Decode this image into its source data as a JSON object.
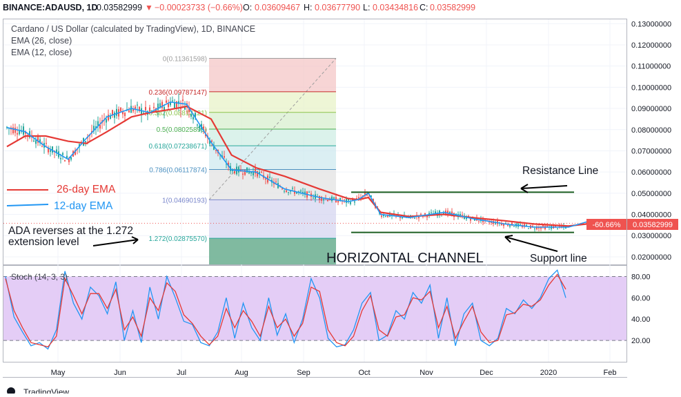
{
  "header": {
    "symbol": "BINANCE:ADAUSD, 1D",
    "last": "0.03582999",
    "change": "−0.00023733 (−0.66%)",
    "o_label": "O:",
    "o": "0.03609467",
    "h_label": "H:",
    "h": "0.03677790",
    "l_label": "L:",
    "l": "0.03434816",
    "c_label": "C:",
    "c": "0.03582999"
  },
  "legend": {
    "title": "Cardano / US Dollar (calculated by TradingView), 1D, BINANCE",
    "ema26": "EMA (26, close)",
    "ema12": "EMA (12, close)"
  },
  "annotations": {
    "ema26_label": "26-day EMA",
    "ema12_label": "12-day EMA",
    "reversal_line1": "ADA reverses at the 1.272",
    "reversal_line2": "extension level",
    "resistance": "Resistance Line",
    "support": "Support line",
    "channel": "HORIZONTAL CHANNEL"
  },
  "price_tag": {
    "pct": "-60.66%",
    "price": "0.03582999"
  },
  "stoch_label": "Stoch (14, 3, 3)",
  "footer": {
    "brand": "TradingView"
  },
  "colors": {
    "up": "#26a69a",
    "down": "#ef5350",
    "ema26": "#e53935",
    "ema12": "#2196f3",
    "stoch_bg": "#e1c8f5",
    "channel": "#1b5e20"
  },
  "chart_data": [
    {
      "type": "candlestick",
      "title": "Cardano / US Dollar (calculated by TradingView), 1D, BINANCE",
      "x_ticks": [
        "May",
        "Jun",
        "Jul",
        "Aug",
        "Sep",
        "Oct",
        "Nov",
        "Dec",
        "2020",
        "Feb"
      ],
      "y_ticks": [
        "0.13000000",
        "0.12000000",
        "0.11000000",
        "0.10000000",
        "0.09000000",
        "0.08000000",
        "0.07000000",
        "0.06000000",
        "0.05000000",
        "0.04000000",
        "0.03000000",
        "0.02000000"
      ],
      "ylim": [
        0.0164,
        0.1322
      ],
      "series": [
        {
          "name": "EMA (26, close)",
          "color": "#e53935",
          "x": [
            "2019-04-01",
            "2019-04-10",
            "2019-04-20",
            "2019-05-01",
            "2019-05-10",
            "2019-05-20",
            "2019-06-01",
            "2019-06-10",
            "2019-06-20",
            "2019-06-28",
            "2019-07-10",
            "2019-07-20",
            "2019-08-01",
            "2019-08-15",
            "2019-09-01",
            "2019-09-15",
            "2019-09-20",
            "2019-09-25",
            "2019-10-01",
            "2019-10-15",
            "2019-11-01",
            "2019-11-15",
            "2019-12-01",
            "2019-12-15",
            "2020-01-01",
            "2020-01-10"
          ],
          "values": [
            0.072,
            0.077,
            0.077,
            0.0745,
            0.0735,
            0.079,
            0.086,
            0.088,
            0.0895,
            0.091,
            0.085,
            0.068,
            0.062,
            0.058,
            0.052,
            0.0475,
            0.047,
            0.048,
            0.041,
            0.039,
            0.04,
            0.0385,
            0.037,
            0.0355,
            0.0345,
            0.0355
          ]
        },
        {
          "name": "EMA (12, close)",
          "color": "#2196f3",
          "x": [
            "2019-04-01",
            "2019-04-10",
            "2019-04-20",
            "2019-05-01",
            "2019-05-10",
            "2019-05-20",
            "2019-06-01",
            "2019-06-10",
            "2019-06-20",
            "2019-06-28",
            "2019-07-10",
            "2019-07-20",
            "2019-08-01",
            "2019-08-15",
            "2019-09-01",
            "2019-09-15",
            "2019-09-20",
            "2019-09-25",
            "2019-10-01",
            "2019-10-15",
            "2019-11-01",
            "2019-11-15",
            "2019-12-01",
            "2019-12-15",
            "2020-01-01",
            "2020-01-10"
          ],
          "values": [
            0.081,
            0.079,
            0.072,
            0.066,
            0.076,
            0.086,
            0.09,
            0.088,
            0.093,
            0.092,
            0.074,
            0.061,
            0.06,
            0.052,
            0.048,
            0.046,
            0.047,
            0.05,
            0.04,
            0.0385,
            0.041,
            0.038,
            0.0355,
            0.034,
            0.034,
            0.0365
          ]
        }
      ],
      "fibonacci": [
        {
          "level": "0",
          "price": 0.11361598,
          "label": "0(0.11361598)"
        },
        {
          "level": "0.236",
          "price": 0.09787147,
          "label": "0.236(0.09787147)"
        },
        {
          "level": "0.382",
          "price": 0.08813121,
          "label": "0.382(0.08813121)"
        },
        {
          "level": "0.5",
          "price": 0.08025896,
          "label": "0.5(0.08025896)"
        },
        {
          "level": "0.618",
          "price": 0.07238671,
          "label": "0.618(0.07238671)"
        },
        {
          "level": "0.786",
          "price": 0.06117874,
          "label": "0.786(0.06117874)"
        },
        {
          "level": "1",
          "price": 0.04690193,
          "label": "1(0.04690193)"
        },
        {
          "level": "1.272",
          "price": 0.0287557,
          "label": "1.272(0.02875570)"
        }
      ],
      "channel": {
        "resistance": 0.0505,
        "support": 0.0315
      },
      "last_price": 0.03582999
    },
    {
      "type": "line",
      "title": "Stoch (14, 3, 3)",
      "y_ticks": [
        "80.00",
        "60.00",
        "40.00",
        "20.00"
      ],
      "ylim": [
        0,
        90
      ],
      "bands": [
        80,
        20
      ],
      "series": [
        {
          "name": "%K",
          "color": "#2196f3",
          "values": [
            80,
            42,
            28,
            15,
            18,
            12,
            30,
            85,
            55,
            40,
            70,
            62,
            45,
            75,
            20,
            48,
            18,
            70,
            40,
            80,
            60,
            38,
            35,
            18,
            15,
            28,
            60,
            22,
            55,
            32,
            20,
            60,
            25,
            45,
            18,
            40,
            78,
            60,
            22,
            14,
            16,
            30,
            55,
            65,
            20,
            25,
            48,
            40,
            65,
            55,
            72,
            22,
            60,
            15,
            45,
            55,
            20,
            15,
            22,
            50,
            45,
            58,
            50,
            60,
            78,
            86,
            60
          ]
        },
        {
          "name": "%D",
          "color": "#e53935",
          "values": [
            78,
            48,
            32,
            18,
            16,
            14,
            24,
            78,
            62,
            45,
            64,
            64,
            50,
            68,
            30,
            42,
            24,
            60,
            48,
            74,
            66,
            44,
            36,
            24,
            16,
            24,
            50,
            32,
            48,
            38,
            24,
            52,
            32,
            40,
            24,
            36,
            70,
            66,
            30,
            18,
            15,
            24,
            48,
            62,
            30,
            24,
            42,
            44,
            60,
            58,
            66,
            32,
            52,
            22,
            38,
            52,
            28,
            18,
            20,
            44,
            46,
            54,
            52,
            58,
            72,
            82,
            68
          ]
        }
      ]
    }
  ]
}
